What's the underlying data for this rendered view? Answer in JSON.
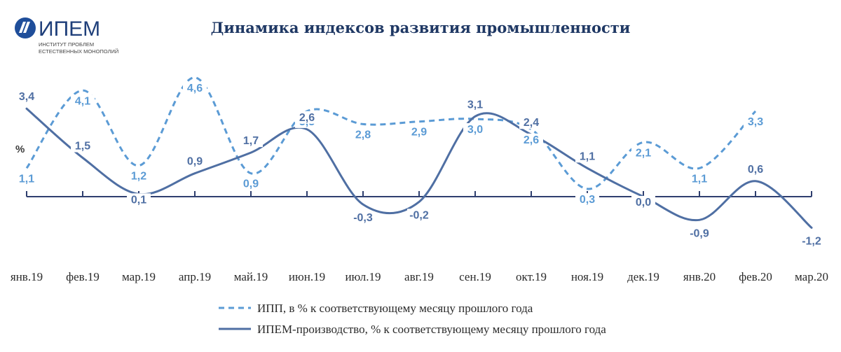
{
  "logo": {
    "name": "ИПЕМ",
    "line1": "ИНСТИТУТ ПРОБЛЕМ",
    "line2": "ЕСТЕСТВЕННЫХ МОНОПОЛИЙ",
    "colors": {
      "badge": "#1f4e9a",
      "text": "#1f3f7a"
    }
  },
  "chart_data": {
    "type": "line",
    "title": "Динамика индексов развития промышленности",
    "ylabel": "%",
    "categories": [
      "янв.19",
      "фев.19",
      "мар.19",
      "апр.19",
      "май.19",
      "июн.19",
      "июл.19",
      "авг.19",
      "сен.19",
      "окт.19",
      "ноя.19",
      "дек.19",
      "янв.20",
      "фев.20",
      "мар.20"
    ],
    "series": [
      {
        "name": "ИПП, в % к соответствующему месяцу прошлого года",
        "style": "dashed",
        "color": "#5b9bd5",
        "values": [
          1.1,
          4.1,
          1.2,
          4.6,
          0.9,
          3.3,
          2.8,
          2.9,
          3.0,
          2.6,
          0.3,
          2.1,
          1.1,
          3.3,
          null
        ],
        "labels": [
          "1,1",
          "4,1",
          "1,2",
          "4,6",
          "0,9",
          "3,3",
          "2,8",
          "2,9",
          "3,0",
          "2,6",
          "0,3",
          "2,1",
          "1,1",
          "3,3",
          ""
        ]
      },
      {
        "name": "ИПЕМ-производство, % к соответствующему месяцу прошлого года",
        "style": "solid",
        "color": "#4f6fa3",
        "values": [
          3.4,
          1.5,
          0.1,
          0.9,
          1.7,
          2.6,
          -0.3,
          -0.2,
          3.1,
          2.4,
          1.1,
          0.0,
          -0.9,
          0.6,
          -1.2
        ],
        "labels": [
          "3,4",
          "1,5",
          "0,1",
          "0,9",
          "1,7",
          "2,6",
          "-0,3",
          "-0,2",
          "3,1",
          "2,4",
          "1,1",
          "0,0",
          "-0,9",
          "0,6",
          "-1,2"
        ]
      }
    ],
    "ylim": [
      -1.5,
      5.0
    ],
    "grid": false,
    "legend_position": "bottom"
  }
}
